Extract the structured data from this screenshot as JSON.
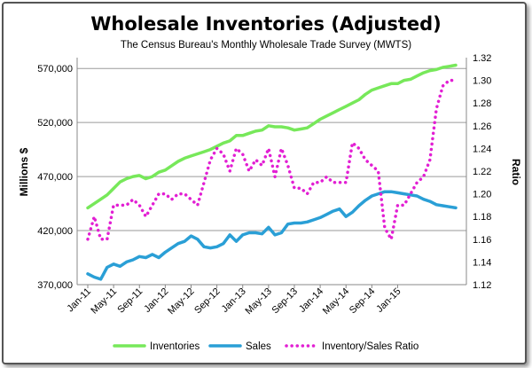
{
  "chart_data": {
    "type": "line",
    "title": "Wholesale Inventories (Adjusted)",
    "subtitle": "The Census Bureau's Monthly Wholesale Trade Survey (MWTS)",
    "ylabel": "Millions $",
    "y2label": "Ratio",
    "ylim": [
      370000,
      580000
    ],
    "y2lim": [
      1.12,
      1.32
    ],
    "yticks": [
      "370,000",
      "420,000",
      "470,000",
      "520,000",
      "570,000"
    ],
    "y2ticks": [
      "1.12",
      "1.14",
      "1.16",
      "1.18",
      "1.20",
      "1.22",
      "1.24",
      "1.26",
      "1.28",
      "1.30",
      "1.32"
    ],
    "xticks": [
      "Jan-11",
      "May-11",
      "Sep-11",
      "Jan-12",
      "May-12",
      "Sep-12",
      "Jan-13",
      "May-13",
      "Sep-13",
      "Jan-14",
      "May-14",
      "Sep-14",
      "Jan-15"
    ],
    "grid": true,
    "legend_position": "bottom",
    "series": [
      {
        "name": "Inventories",
        "axis": "left",
        "color": "#77e85a",
        "style": "solid",
        "values": [
          441000,
          445000,
          449000,
          453000,
          459000,
          465000,
          468000,
          470000,
          471000,
          468000,
          470000,
          474000,
          476000,
          480000,
          484000,
          487000,
          489000,
          491000,
          493000,
          495000,
          498000,
          501000,
          503000,
          508000,
          508000,
          510000,
          512000,
          513000,
          517000,
          516000,
          516000,
          515000,
          513000,
          514000,
          515000,
          519000,
          523000,
          526000,
          529000,
          532000,
          535000,
          538000,
          541000,
          546000,
          550000,
          552000,
          554000,
          556000,
          556000,
          559000,
          560000,
          563000,
          566000,
          568000,
          569000,
          571000,
          572000,
          573000
        ]
      },
      {
        "name": "Sales",
        "axis": "left",
        "color": "#2a9fd6",
        "style": "solid",
        "values": [
          380000,
          377000,
          375000,
          386000,
          389000,
          387000,
          391000,
          393000,
          396000,
          395000,
          398000,
          395000,
          400000,
          404000,
          408000,
          410000,
          415000,
          412000,
          405000,
          404000,
          405000,
          408000,
          416000,
          410000,
          416000,
          418000,
          418000,
          417000,
          423000,
          416000,
          418000,
          426000,
          427000,
          427000,
          428000,
          430000,
          432000,
          435000,
          438000,
          440000,
          433000,
          437000,
          443000,
          448000,
          452000,
          454000,
          456000,
          456000,
          455000,
          454000,
          453000,
          452000,
          449000,
          447000,
          444000,
          443000,
          442000,
          441000
        ]
      },
      {
        "name": "Inventory/Sales Ratio",
        "axis": "right",
        "color": "#e21fd3",
        "style": "dotted",
        "values": [
          1.16,
          1.18,
          1.16,
          1.16,
          1.19,
          1.19,
          1.19,
          1.195,
          1.19,
          1.18,
          1.19,
          1.2,
          1.2,
          1.195,
          1.2,
          1.2,
          1.195,
          1.19,
          1.21,
          1.23,
          1.24,
          1.235,
          1.22,
          1.24,
          1.235,
          1.22,
          1.23,
          1.225,
          1.24,
          1.215,
          1.24,
          1.225,
          1.205,
          1.205,
          1.2,
          1.21,
          1.21,
          1.215,
          1.21,
          1.21,
          1.21,
          1.245,
          1.24,
          1.23,
          1.225,
          1.22,
          1.17,
          1.16,
          1.19,
          1.19,
          1.2,
          1.21,
          1.215,
          1.23,
          1.275,
          1.295,
          1.3,
          1.3
        ]
      }
    ]
  }
}
